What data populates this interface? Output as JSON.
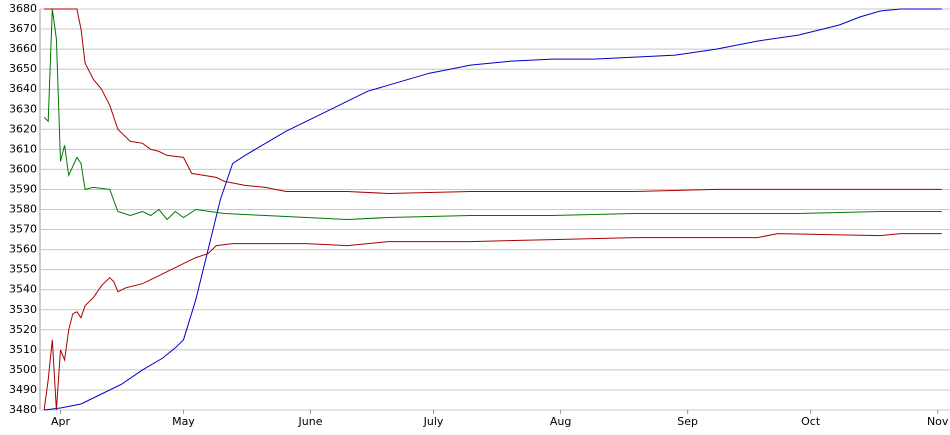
{
  "chart_data": {
    "type": "line",
    "xlim": [
      -5,
      217
    ],
    "xticks": [
      {
        "value": 0,
        "label": "Apr"
      },
      {
        "value": 30,
        "label": "May"
      },
      {
        "value": 61,
        "label": "June"
      },
      {
        "value": 91,
        "label": "July"
      },
      {
        "value": 122,
        "label": "Aug"
      },
      {
        "value": 153,
        "label": "Sep"
      },
      {
        "value": 183,
        "label": "Oct"
      },
      {
        "value": 214,
        "label": "Nov"
      }
    ],
    "ylim": [
      3480,
      3680
    ],
    "yticks": [
      3480,
      3490,
      3500,
      3510,
      3520,
      3530,
      3540,
      3550,
      3560,
      3570,
      3580,
      3590,
      3600,
      3610,
      3620,
      3630,
      3640,
      3650,
      3660,
      3670,
      3680
    ],
    "grid": true,
    "series": [
      {
        "color": "#0000cc",
        "x": [
          -4,
          0,
          5,
          10,
          15,
          20,
          25,
          28,
          30,
          33,
          36,
          39,
          42,
          45,
          50,
          55,
          60,
          65,
          70,
          75,
          80,
          85,
          90,
          95,
          100,
          110,
          120,
          130,
          140,
          150,
          160,
          170,
          180,
          190,
          195,
          200,
          205,
          215
        ],
        "values": [
          3480,
          3481,
          3483,
          3488,
          3493,
          3500,
          3506,
          3511,
          3515,
          3535,
          3560,
          3585,
          3603,
          3607,
          3613,
          3619,
          3624,
          3629,
          3634,
          3639,
          3642,
          3645,
          3648,
          3650,
          3652,
          3654,
          3655,
          3655,
          3656,
          3657,
          3660,
          3664,
          3667,
          3672,
          3676,
          3679,
          3680,
          3680
        ]
      },
      {
        "color": "#007700",
        "x": [
          -4,
          -3,
          -2,
          -1,
          0,
          1,
          2,
          4,
          5,
          6,
          8,
          12,
          14,
          17,
          20,
          22,
          24,
          26,
          28,
          30,
          33,
          40,
          50,
          60,
          70,
          80,
          100,
          120,
          140,
          160,
          180,
          200,
          215
        ],
        "values": [
          3626,
          3624,
          3680,
          3665,
          3604,
          3612,
          3597,
          3606,
          3603,
          3590,
          3591,
          3590,
          3579,
          3577,
          3579,
          3577,
          3580,
          3575,
          3579,
          3576,
          3580,
          3578,
          3577,
          3576,
          3575,
          3576,
          3577,
          3577,
          3578,
          3578,
          3578,
          3579,
          3579
        ]
      },
      {
        "color": "#aa0000",
        "x": [
          -4,
          4,
          5,
          6,
          8,
          10,
          12,
          14,
          17,
          20,
          22,
          24,
          26,
          30,
          32,
          35,
          38,
          40,
          45,
          50,
          55,
          70,
          80,
          100,
          120,
          140,
          160,
          180,
          200,
          215
        ],
        "values": [
          3680,
          3680,
          3670,
          3653,
          3645,
          3640,
          3632,
          3620,
          3614,
          3613,
          3610,
          3609,
          3607,
          3606,
          3598,
          3597,
          3596,
          3594,
          3592,
          3591,
          3589,
          3589,
          3588,
          3589,
          3589,
          3589,
          3590,
          3590,
          3590,
          3590
        ]
      },
      {
        "color": "#aa0000",
        "x": [
          -4,
          -3,
          -2,
          -1,
          0,
          1,
          2,
          3,
          4,
          5,
          6,
          8,
          10,
          12,
          13,
          14,
          16,
          20,
          25,
          30,
          33,
          36,
          38,
          42,
          50,
          60,
          70,
          80,
          100,
          120,
          140,
          160,
          170,
          175,
          200,
          205,
          215
        ],
        "values": [
          3480,
          3495,
          3515,
          3480,
          3510,
          3505,
          3520,
          3528,
          3529,
          3526,
          3532,
          3536,
          3542,
          3546,
          3544,
          3539,
          3541,
          3543,
          3548,
          3553,
          3556,
          3558,
          3562,
          3563,
          3563,
          3563,
          3562,
          3564,
          3564,
          3565,
          3566,
          3566,
          3566,
          3568,
          3567,
          3568,
          3568
        ]
      }
    ]
  }
}
